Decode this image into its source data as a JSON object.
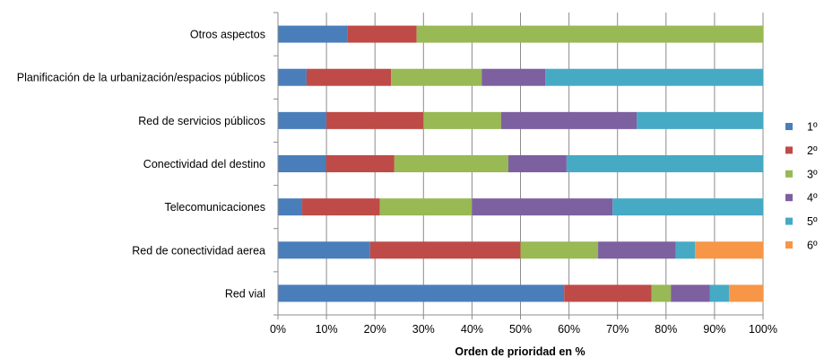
{
  "chart_data": {
    "type": "bar",
    "orientation": "horizontal",
    "stacked": true,
    "percent": true,
    "title": "",
    "xlabel": "Orden de prioridad en %",
    "ylabel": "",
    "xlim": [
      0,
      100
    ],
    "x_ticks": [
      "0%",
      "10%",
      "20%",
      "30%",
      "40%",
      "50%",
      "60%",
      "70%",
      "80%",
      "90%",
      "100%"
    ],
    "grid": "vertical",
    "legend_position": "right",
    "categories": [
      "Otros aspectos",
      "Planificación de la urbanización/espacios públicos",
      "Red de servicios públicos",
      "Conectividad del destino",
      "Telecomunicaciones",
      "Red de conectividad aerea",
      "Red vial"
    ],
    "series": [
      {
        "name": "1º",
        "color": "#4a7ebb",
        "values": [
          14.3,
          5.9,
          10.0,
          9.9,
          5.0,
          19.0,
          59.0
        ]
      },
      {
        "name": "2º",
        "color": "#be4b48",
        "values": [
          14.3,
          17.4,
          20.0,
          14.1,
          16.0,
          31.0,
          18.0
        ]
      },
      {
        "name": "3º",
        "color": "#98b954",
        "values": [
          71.4,
          18.7,
          16.0,
          23.5,
          19.0,
          16.0,
          4.0
        ]
      },
      {
        "name": "4º",
        "color": "#7d60a0",
        "values": [
          0,
          13.1,
          28.0,
          12.0,
          29.0,
          16.0,
          8.0
        ]
      },
      {
        "name": "5º",
        "color": "#46aac5",
        "values": [
          0,
          44.9,
          26.0,
          40.5,
          31.0,
          4.0,
          4.0
        ]
      },
      {
        "name": "6º",
        "color": "#f79646",
        "values": [
          0,
          0,
          0,
          0,
          0,
          14.0,
          7.0
        ]
      }
    ]
  }
}
